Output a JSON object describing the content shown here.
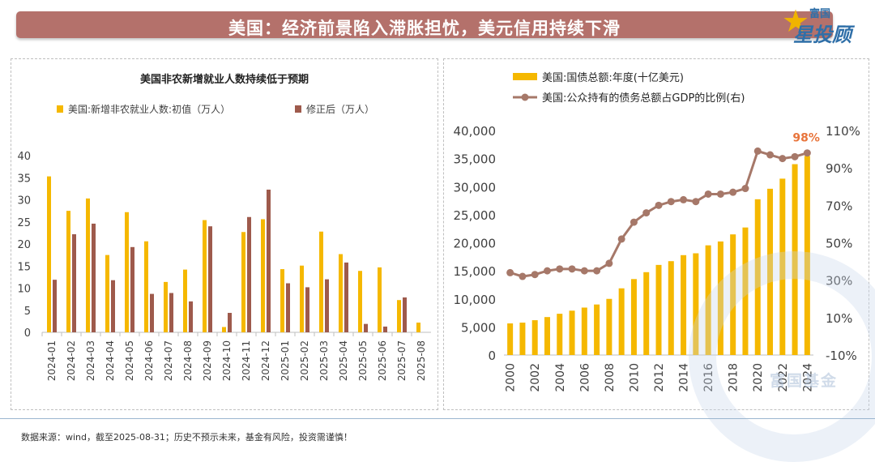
{
  "header": {
    "title": "美国：经济前景陷入滞胀担忧，美元信用持续下滑",
    "logo_small": "富国",
    "logo_big": "星投顾",
    "logo_icon": "star-icon"
  },
  "watermark": {
    "text": "富国基金"
  },
  "footer": {
    "note": "数据来源：wind，截至2025-08-31；历史不预示未来，基金有风险，投资需谨慎！"
  },
  "chart_data": [
    {
      "type": "bar",
      "title": "美国非农新增就业人数持续低于预期",
      "categories": [
        "2024-01",
        "2024-02",
        "2024-03",
        "2024-04",
        "2024-05",
        "2024-06",
        "2024-07",
        "2024-08",
        "2024-09",
        "2024-10",
        "2024-11",
        "2024-12",
        "2025-01",
        "2025-02",
        "2025-03",
        "2025-04",
        "2025-05",
        "2025-06",
        "2025-07",
        "2025-08"
      ],
      "series": [
        {
          "name": "美国:新增非农就业人数:初值（万人）",
          "color": "#f5b800",
          "values": [
            35.3,
            27.5,
            30.3,
            17.5,
            27.2,
            20.6,
            11.4,
            14.2,
            25.4,
            1.2,
            22.7,
            25.6,
            14.3,
            15.1,
            22.8,
            17.7,
            13.9,
            14.7,
            7.3,
            2.2
          ]
        },
        {
          "name": "修正后（万人）",
          "color": "#9e5a4c",
          "values": [
            11.9,
            22.2,
            24.6,
            11.8,
            19.3,
            8.7,
            8.9,
            7.0,
            24.0,
            4.4,
            26.1,
            32.3,
            11.1,
            10.2,
            12.0,
            15.8,
            1.9,
            1.3,
            7.9,
            null
          ]
        }
      ],
      "ylim": [
        0,
        40
      ],
      "yticks": [
        "0",
        "5",
        "10",
        "15",
        "20",
        "25",
        "30",
        "35",
        "40"
      ],
      "legend": "top"
    },
    {
      "type": "bar+line",
      "categories": [
        "2000",
        "2001",
        "2002",
        "2003",
        "2004",
        "2005",
        "2006",
        "2007",
        "2008",
        "2009",
        "2010",
        "2011",
        "2012",
        "2013",
        "2014",
        "2015",
        "2016",
        "2017",
        "2018",
        "2019",
        "2020",
        "2021",
        "2022",
        "2023",
        "2024"
      ],
      "xticks": [
        "2000",
        "2002",
        "2004",
        "2006",
        "2008",
        "2010",
        "2012",
        "2014",
        "2016",
        "2018",
        "2020",
        "2022",
        "2024"
      ],
      "bar_series": {
        "name": "美国:国债总额:年度(十亿美元)",
        "color": "#f5b800",
        "values": [
          5630,
          5770,
          6200,
          6760,
          7350,
          7900,
          8450,
          9000,
          10000,
          11880,
          13530,
          14760,
          16050,
          16720,
          17790,
          18120,
          19540,
          20230,
          21490,
          22720,
          27750,
          29620,
          31420,
          34000,
          35460
        ]
      },
      "line_series": {
        "name": "美国:公众持有的债务总额占GDP的比例(右)",
        "color": "#a67869",
        "axis": "right",
        "values": [
          34,
          32,
          33,
          35,
          36,
          36,
          35,
          35,
          39,
          52,
          61,
          66,
          70,
          72,
          73,
          72,
          76,
          76,
          77,
          79,
          99,
          97,
          95,
          96,
          98
        ]
      },
      "left_ylim": [
        0,
        40000
      ],
      "left_yticks": [
        "0",
        "5,000",
        "10,000",
        "15,000",
        "20,000",
        "25,000",
        "30,000",
        "35,000",
        "40,000"
      ],
      "right_ylim": [
        -10,
        110
      ],
      "right_yticks": [
        "-10%",
        "10%",
        "30%",
        "50%",
        "70%",
        "90%",
        "110%"
      ],
      "annotation": {
        "text": "98%",
        "color": "#e8743b"
      },
      "legend": "top-left"
    }
  ]
}
